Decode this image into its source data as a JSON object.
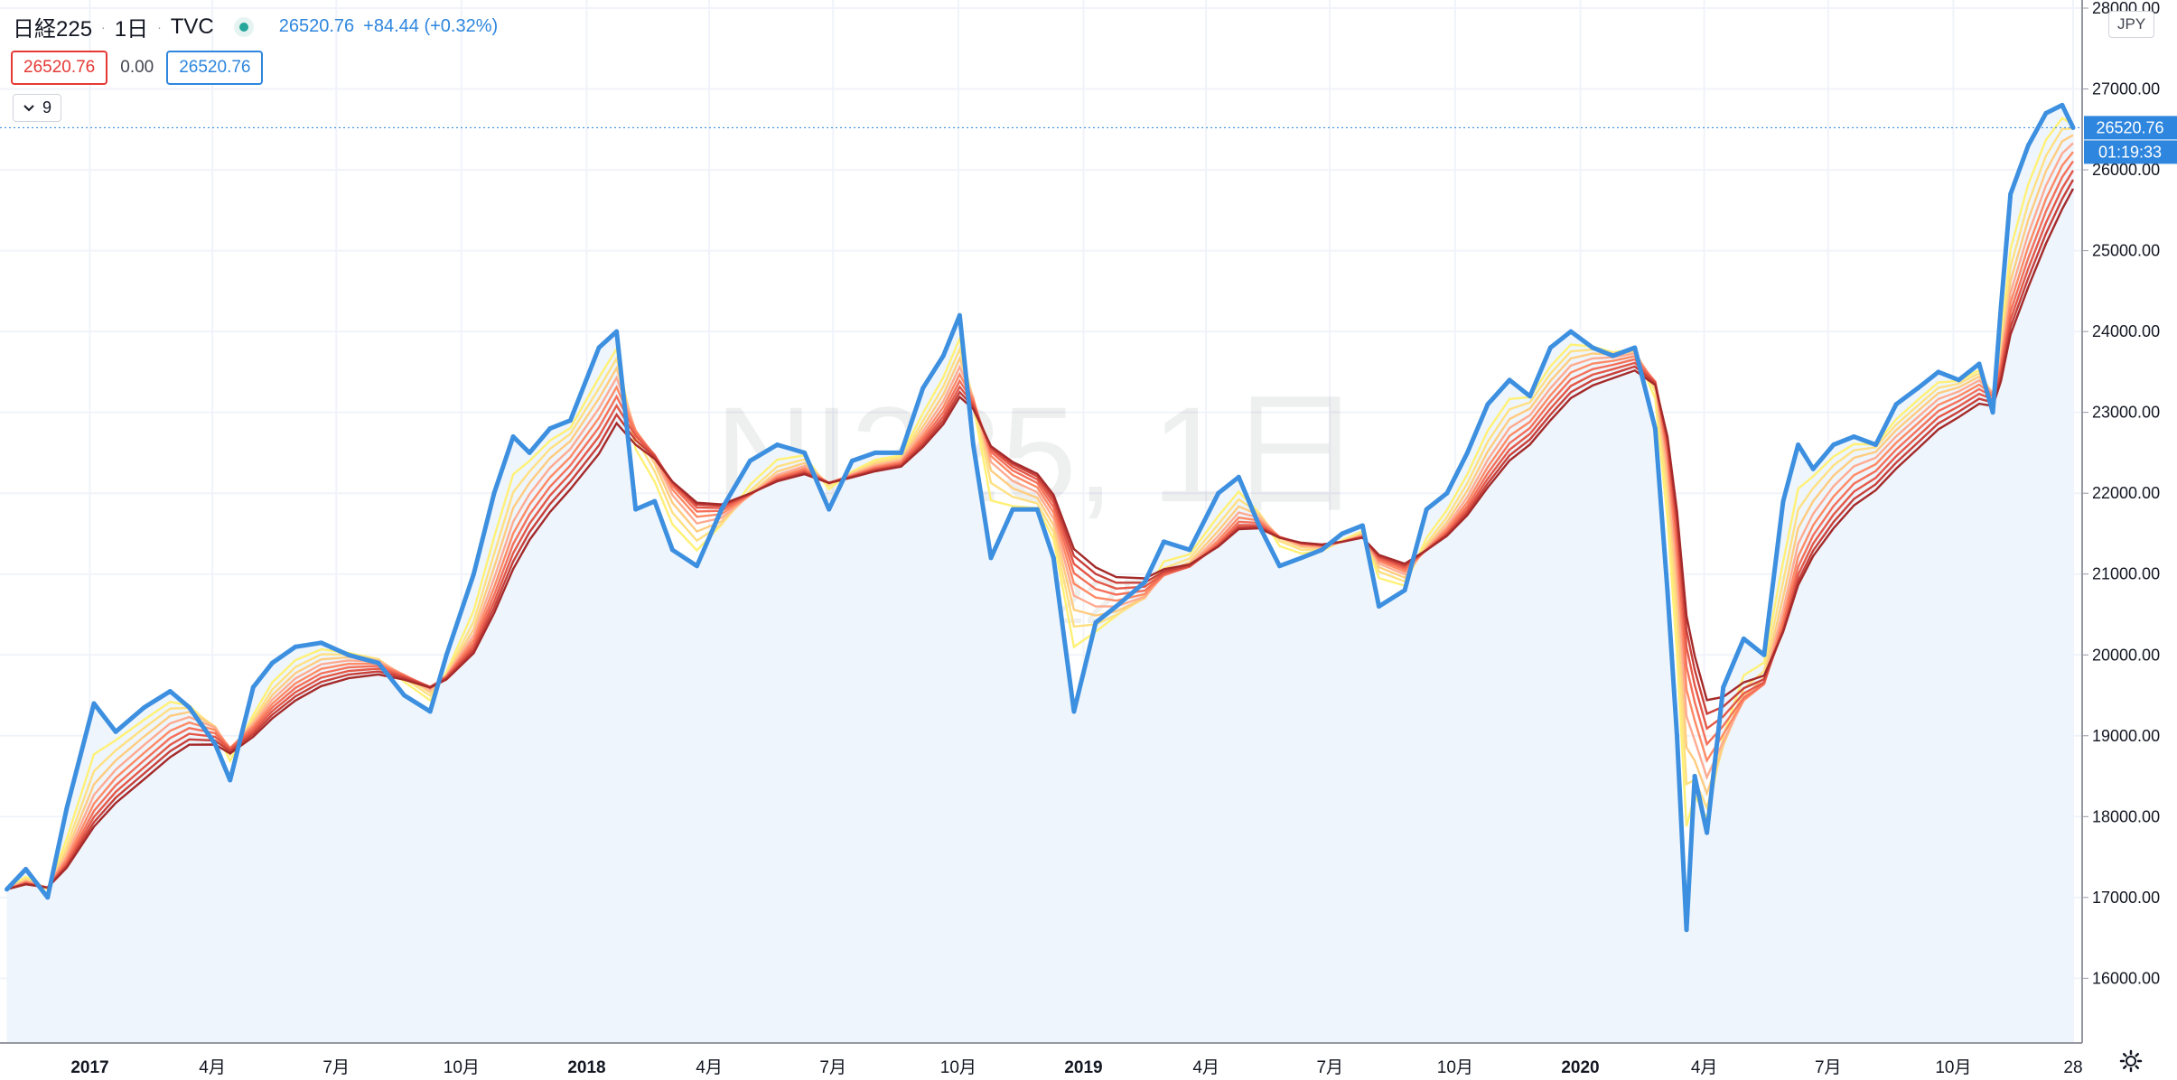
{
  "header": {
    "symbol": "日経225",
    "interval": "1日",
    "exchange": "TVC",
    "last_price": "26520.76",
    "change": "+84.44 (+0.32%)"
  },
  "ohlc": {
    "left_value": "26520.76",
    "middle_value": "0.00",
    "right_value": "26520.76"
  },
  "indicator_toggle": {
    "label": "9"
  },
  "currency": "JPY",
  "watermark": {
    "main": "NI225, 1日",
    "sub": "日経225"
  },
  "price_tag": "26520.76",
  "countdown_tag": "01:19:33",
  "colors": {
    "price_line": "#3d8fe0",
    "area_fill": "#eef5fc",
    "ribbon": [
      "#fff176",
      "#ffe082",
      "#ffcc80",
      "#ffab91",
      "#ff8a65",
      "#f4705a",
      "#e45848",
      "#c9403a",
      "#a52a2a"
    ]
  },
  "chart_data": {
    "type": "line",
    "title": "",
    "xlabel": "",
    "ylabel": "",
    "x_axis_labels": [
      "2017",
      "4月",
      "7月",
      "10月",
      "2018",
      "4月",
      "7月",
      "10月",
      "2019",
      "4月",
      "7月",
      "10月",
      "2020",
      "4月",
      "7月",
      "10月",
      "28"
    ],
    "y_axis_labels": [
      "28000.00",
      "27000.00",
      "26000.00",
      "25000.00",
      "24000.00",
      "23000.00",
      "22000.00",
      "21000.00",
      "20000.00",
      "19000.00",
      "18000.00",
      "17000.00",
      "16000.00"
    ],
    "ylim": [
      15200,
      28000
    ],
    "grid": true,
    "series": [
      {
        "x": [
          "2016-11-01",
          "2016-11-15",
          "2016-12-01",
          "2016-12-15",
          "2017-01-04",
          "2017-01-20",
          "2017-02-10",
          "2017-03-01",
          "2017-03-15",
          "2017-04-03",
          "2017-04-14",
          "2017-05-01",
          "2017-05-15",
          "2017-06-01",
          "2017-06-20",
          "2017-07-10",
          "2017-08-01",
          "2017-08-20",
          "2017-09-08",
          "2017-09-20",
          "2017-10-10",
          "2017-10-25",
          "2017-11-08",
          "2017-11-20",
          "2017-12-05",
          "2017-12-20",
          "2018-01-10",
          "2018-01-23",
          "2018-02-06",
          "2018-02-20",
          "2018-03-05",
          "2018-03-23",
          "2018-04-10",
          "2018-05-01",
          "2018-05-21",
          "2018-06-10",
          "2018-06-28",
          "2018-07-15",
          "2018-08-01",
          "2018-08-20",
          "2018-09-05",
          "2018-09-20",
          "2018-10-02",
          "2018-10-12",
          "2018-10-25",
          "2018-11-10",
          "2018-11-28",
          "2018-12-10",
          "2018-12-25",
          "2019-01-10",
          "2019-01-25",
          "2019-02-15",
          "2019-03-01",
          "2019-03-20",
          "2019-04-10",
          "2019-04-25",
          "2019-05-10",
          "2019-05-25",
          "2019-06-10",
          "2019-06-25",
          "2019-07-10",
          "2019-07-25",
          "2019-08-06",
          "2019-08-25",
          "2019-09-10",
          "2019-09-25",
          "2019-10-10",
          "2019-10-25",
          "2019-11-10",
          "2019-11-25",
          "2019-12-10",
          "2019-12-25",
          "2020-01-10",
          "2020-01-25",
          "2020-02-10",
          "2020-02-25",
          "2020-03-05",
          "2020-03-12",
          "2020-03-19",
          "2020-03-25",
          "2020-04-03",
          "2020-04-15",
          "2020-04-30",
          "2020-05-15",
          "2020-05-29",
          "2020-06-09",
          "2020-06-20",
          "2020-07-05",
          "2020-07-20",
          "2020-08-05",
          "2020-08-20",
          "2020-09-05",
          "2020-09-20",
          "2020-10-05",
          "2020-10-20",
          "2020-10-30",
          "2020-11-05",
          "2020-11-12",
          "2020-11-25",
          "2020-12-08",
          "2020-12-20",
          "2020-12-28"
        ],
        "y": [
          17100,
          17350,
          17000,
          18100,
          19400,
          19050,
          19350,
          19550,
          19350,
          18900,
          18450,
          19600,
          19900,
          20100,
          20150,
          20000,
          19900,
          19500,
          19300,
          20000,
          21000,
          22000,
          22700,
          22500,
          22800,
          22900,
          23800,
          24000,
          21800,
          21900,
          21300,
          21100,
          21800,
          22400,
          22600,
          22500,
          21800,
          22400,
          22500,
          22500,
          23300,
          23700,
          24200,
          22600,
          21200,
          21800,
          21800,
          21200,
          19300,
          20400,
          20600,
          20900,
          21400,
          21300,
          22000,
          22200,
          21600,
          21100,
          21200,
          21300,
          21500,
          21600,
          20600,
          20800,
          21800,
          22000,
          22500,
          23100,
          23400,
          23200,
          23800,
          24000,
          23800,
          23700,
          23800,
          22800,
          20800,
          19000,
          16600,
          18500,
          17800,
          19600,
          20200,
          20000,
          21900,
          22600,
          22300,
          22600,
          22700,
          22600,
          23100,
          23300,
          23500,
          23400,
          23600,
          23000,
          24300,
          25700,
          26300,
          26700,
          26800,
          26520.76
        ]
      }
    ]
  }
}
